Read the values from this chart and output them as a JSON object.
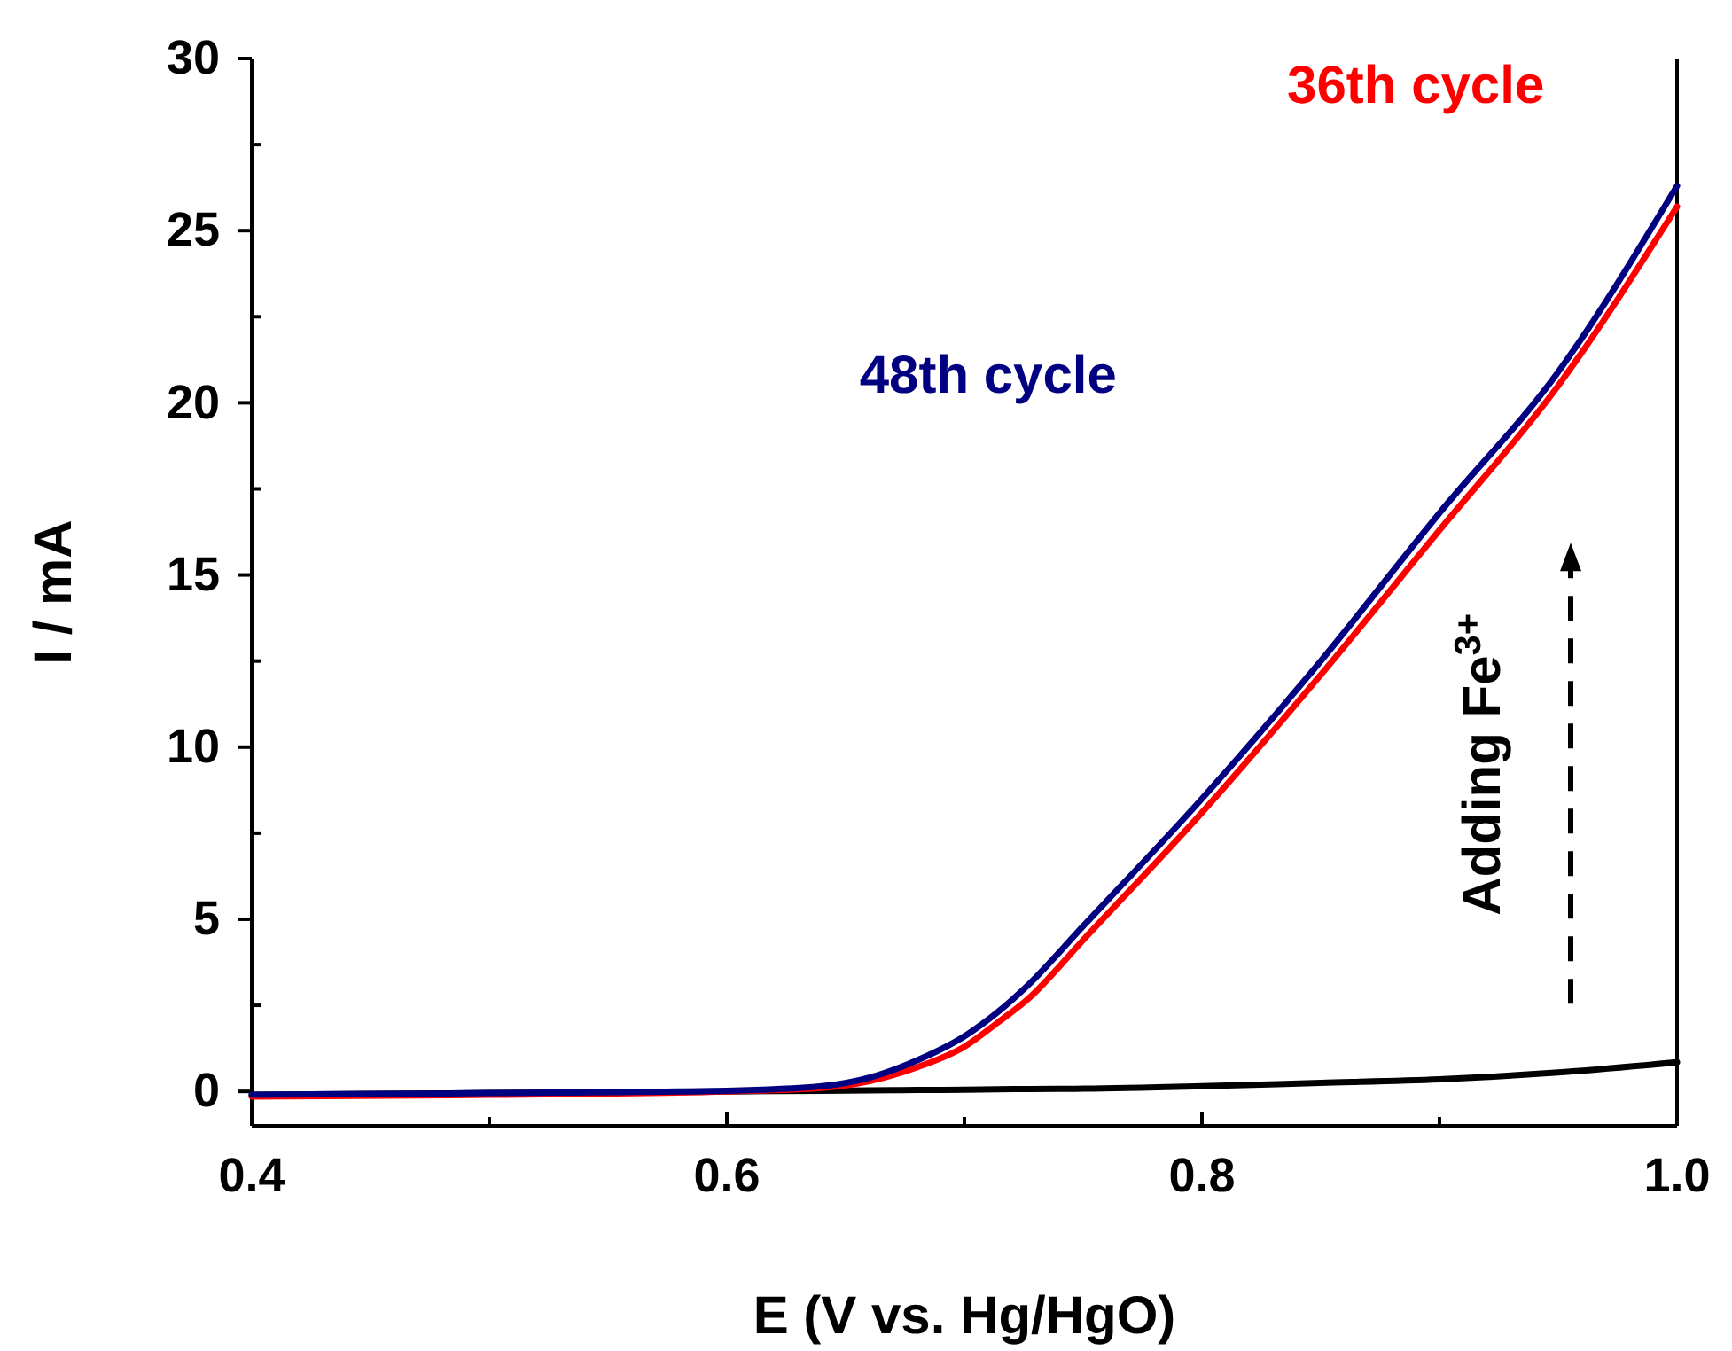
{
  "chart_data": {
    "type": "line",
    "xlabel": "E (V vs. Hg/HgO)",
    "ylabel": "I / mA",
    "xlim": [
      0.4,
      1.0
    ],
    "ylim": [
      -1,
      30
    ],
    "xticks": [
      0.4,
      {
        "value": 0.5,
        "label": null
      },
      0.6,
      {
        "value": 0.7,
        "label": null
      },
      0.8,
      {
        "value": 0.9,
        "label": null
      },
      {
        "value": 1.0,
        "label": "1.0"
      }
    ],
    "yticks": [
      0,
      {
        "value": 2.5,
        "label": null
      },
      5,
      {
        "value": 7.5,
        "label": null
      },
      10,
      {
        "value": 12.5,
        "label": null
      },
      15,
      {
        "value": 17.5,
        "label": null
      },
      20,
      {
        "value": 22.5,
        "label": null
      },
      25,
      {
        "value": 27.5,
        "label": null
      },
      30
    ],
    "grid": false,
    "marker": "none",
    "line_style": "solid",
    "x": [
      0.4,
      0.5,
      0.6,
      0.64,
      0.66,
      0.68,
      0.7,
      0.714,
      0.727,
      0.75,
      0.8,
      0.85,
      0.9,
      0.95,
      1.0
    ],
    "series": [
      {
        "color": "#000000",
        "values": [
          -0.1,
          -0.05,
          0,
          0.02,
          0.03,
          0.04,
          0.05,
          0.06,
          0.07,
          0.08,
          0.15,
          0.25,
          0.35,
          0.55,
          0.85
        ]
      },
      {
        "name": "36th cycle",
        "color": "#ff0000",
        "values": [
          -0.15,
          -0.1,
          0,
          0.1,
          0.3,
          0.7,
          1.3,
          2.0,
          2.7,
          4.4,
          8.1,
          12.1,
          16.3,
          20.5,
          25.7
        ]
      },
      {
        "name": "48th cycle",
        "color": "#000080",
        "values": [
          -0.1,
          -0.05,
          0.02,
          0.15,
          0.4,
          0.9,
          1.6,
          2.3,
          3.1,
          4.8,
          8.5,
          12.5,
          16.8,
          20.9,
          26.3
        ]
      }
    ],
    "annotations": [
      "Adding Fe$^{3+}$"
    ]
  }
}
